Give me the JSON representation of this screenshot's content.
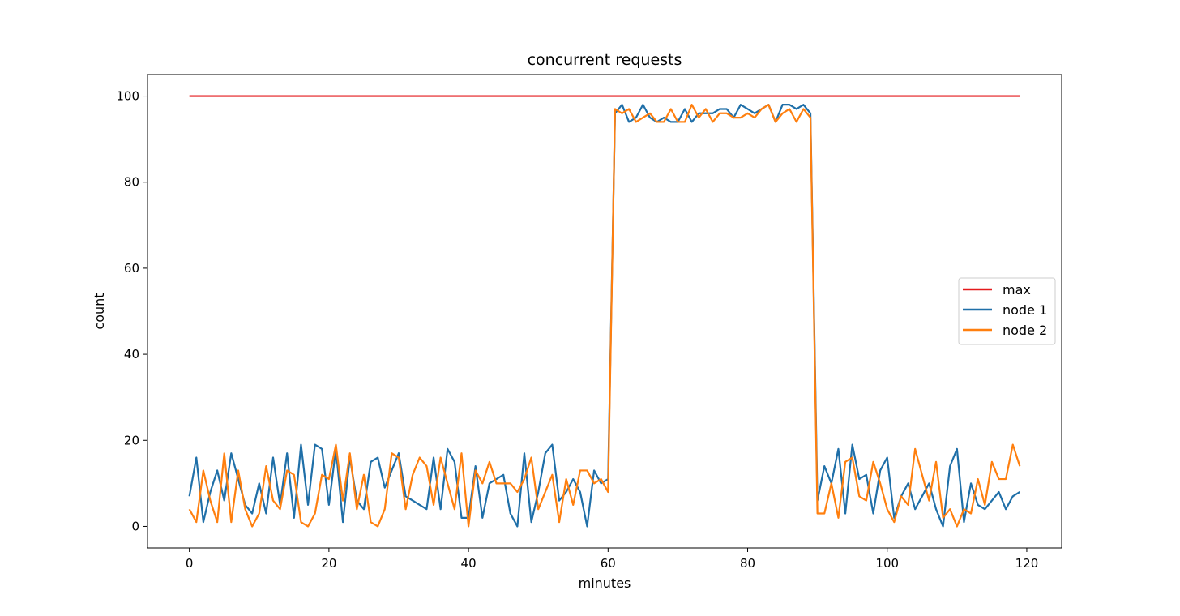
{
  "chart_data": {
    "type": "line",
    "title": "concurrent requests",
    "xlabel": "minutes",
    "ylabel": "count",
    "xlim": [
      -6,
      125
    ],
    "ylim": [
      -5,
      105
    ],
    "xticks": [
      0,
      20,
      40,
      60,
      80,
      100,
      120
    ],
    "yticks": [
      0,
      20,
      40,
      60,
      80,
      100
    ],
    "grid": false,
    "legend_position": "center-right",
    "x": [
      0,
      1,
      2,
      3,
      4,
      5,
      6,
      7,
      8,
      9,
      10,
      11,
      12,
      13,
      14,
      15,
      16,
      17,
      18,
      19,
      20,
      21,
      22,
      23,
      24,
      25,
      26,
      27,
      28,
      29,
      30,
      31,
      32,
      33,
      34,
      35,
      36,
      37,
      38,
      39,
      40,
      41,
      42,
      43,
      44,
      45,
      46,
      47,
      48,
      49,
      50,
      51,
      52,
      53,
      54,
      55,
      56,
      57,
      58,
      59,
      60,
      61,
      62,
      63,
      64,
      65,
      66,
      67,
      68,
      69,
      70,
      71,
      72,
      73,
      74,
      75,
      76,
      77,
      78,
      79,
      80,
      81,
      82,
      83,
      84,
      85,
      86,
      87,
      88,
      89,
      90,
      91,
      92,
      93,
      94,
      95,
      96,
      97,
      98,
      99,
      100,
      101,
      102,
      103,
      104,
      105,
      106,
      107,
      108,
      109,
      110,
      111,
      112,
      113,
      114,
      115,
      116,
      117,
      118,
      119
    ],
    "series": [
      {
        "name": "max",
        "color": "#e41a1c",
        "values": [
          100,
          100,
          100,
          100,
          100,
          100,
          100,
          100,
          100,
          100,
          100,
          100,
          100,
          100,
          100,
          100,
          100,
          100,
          100,
          100,
          100,
          100,
          100,
          100,
          100,
          100,
          100,
          100,
          100,
          100,
          100,
          100,
          100,
          100,
          100,
          100,
          100,
          100,
          100,
          100,
          100,
          100,
          100,
          100,
          100,
          100,
          100,
          100,
          100,
          100,
          100,
          100,
          100,
          100,
          100,
          100,
          100,
          100,
          100,
          100,
          100,
          100,
          100,
          100,
          100,
          100,
          100,
          100,
          100,
          100,
          100,
          100,
          100,
          100,
          100,
          100,
          100,
          100,
          100,
          100,
          100,
          100,
          100,
          100,
          100,
          100,
          100,
          100,
          100,
          100,
          100,
          100,
          100,
          100,
          100,
          100,
          100,
          100,
          100,
          100,
          100,
          100,
          100,
          100,
          100,
          100,
          100,
          100,
          100,
          100,
          100,
          100,
          100,
          100,
          100,
          100,
          100,
          100,
          100,
          100
        ]
      },
      {
        "name": "node 1",
        "color": "#1f6fa8",
        "values": [
          7,
          16,
          1,
          8,
          13,
          6,
          17,
          11,
          5,
          3,
          10,
          3,
          16,
          5,
          17,
          2,
          19,
          5,
          19,
          18,
          5,
          18,
          1,
          16,
          6,
          4,
          15,
          16,
          9,
          13,
          17,
          7,
          6,
          5,
          4,
          16,
          4,
          18,
          15,
          2,
          2,
          14,
          2,
          10,
          11,
          12,
          3,
          0,
          17,
          1,
          8,
          17,
          19,
          6,
          8,
          11,
          8,
          0,
          13,
          10,
          11,
          96,
          98,
          94,
          95,
          98,
          95,
          94,
          95,
          94,
          94,
          97,
          94,
          96,
          96,
          96,
          97,
          97,
          95,
          98,
          97,
          96,
          97,
          98,
          94,
          98,
          98,
          97,
          98,
          96,
          6,
          14,
          10,
          18,
          3,
          19,
          11,
          12,
          3,
          13,
          16,
          2,
          7,
          10,
          4,
          7,
          10,
          4,
          0,
          14,
          18,
          1,
          10,
          5,
          4,
          6,
          8,
          4,
          7,
          8
        ]
      },
      {
        "name": "node 2",
        "color": "#ff7f0e",
        "values": [
          4,
          1,
          13,
          6,
          1,
          17,
          1,
          13,
          4,
          0,
          3,
          14,
          6,
          4,
          13,
          12,
          1,
          0,
          3,
          12,
          11,
          19,
          6,
          17,
          4,
          12,
          1,
          0,
          4,
          17,
          16,
          4,
          12,
          16,
          14,
          5,
          16,
          10,
          4,
          17,
          0,
          13,
          10,
          15,
          10,
          10,
          10,
          8,
          11,
          16,
          4,
          8,
          12,
          1,
          11,
          5,
          13,
          13,
          10,
          11,
          8,
          97,
          96,
          97,
          94,
          95,
          96,
          94,
          94,
          97,
          94,
          94,
          98,
          95,
          97,
          94,
          96,
          96,
          95,
          95,
          96,
          95,
          97,
          98,
          94,
          96,
          97,
          94,
          97,
          95,
          3,
          3,
          10,
          2,
          15,
          16,
          7,
          6,
          15,
          10,
          4,
          1,
          7,
          5,
          18,
          12,
          6,
          15,
          2,
          4,
          0,
          4,
          3,
          11,
          5,
          15,
          11,
          11,
          19,
          14
        ]
      }
    ]
  }
}
